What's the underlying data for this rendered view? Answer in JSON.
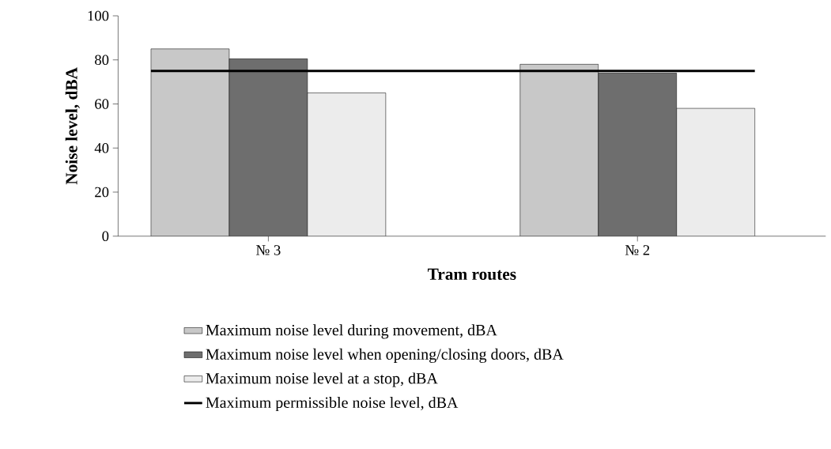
{
  "chart_data": {
    "type": "bar",
    "xlabel": "Tram routes",
    "ylabel": "Noise level, dBA",
    "categories": [
      "№ 3",
      "№ 2"
    ],
    "series": [
      {
        "name": "Maximum noise level during movement, dBA",
        "color": "#c8c8c8",
        "values": [
          85,
          78
        ]
      },
      {
        "name": "Maximum noise level when opening/closing doors, dBA",
        "color": "#6e6e6e",
        "values": [
          80.5,
          74
        ]
      },
      {
        "name": "Maximum noise level at a stop, dBA",
        "color": "#ececec",
        "values": [
          65,
          58
        ]
      }
    ],
    "ref_lines": [
      {
        "axis": "y",
        "value": 75,
        "label": "Maximum permissible noise level, dBA",
        "color": "#000000",
        "line_style": "solid"
      }
    ],
    "ylim": [
      0,
      100
    ],
    "yticks": [
      0,
      20,
      40,
      60,
      80,
      100
    ],
    "grid": false,
    "legend": "bottom"
  }
}
